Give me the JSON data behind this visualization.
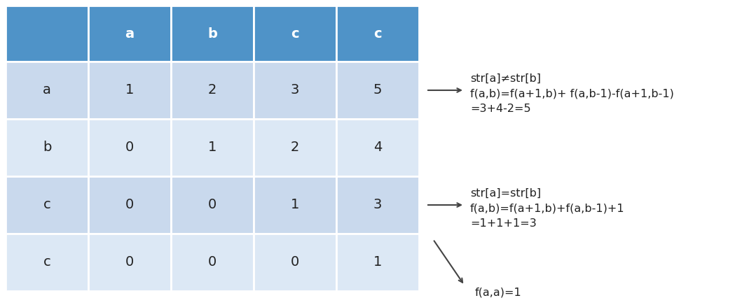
{
  "col_headers": [
    "",
    "a",
    "b",
    "c",
    "c"
  ],
  "row_headers": [
    "a",
    "b",
    "c",
    "c"
  ],
  "table_data": [
    [
      1,
      2,
      3,
      5
    ],
    [
      0,
      1,
      2,
      4
    ],
    [
      0,
      0,
      1,
      3
    ],
    [
      0,
      0,
      0,
      1
    ]
  ],
  "header_bg": "#4f93c8",
  "header_text": "#ffffff",
  "row_bgs": [
    "#c9d9ed",
    "#dce8f5",
    "#c9d9ed",
    "#dce8f5"
  ],
  "text_color": "#222222",
  "annotation1_lines": [
    "str[a]≠str[b]",
    "f(a,b)=f(a+1,b)+ f(a,b-1)-f(a+1,b-1)",
    "=3+4-2=5"
  ],
  "annotation2_lines": [
    "str[a]=str[b]",
    "f(a,b)=f(a+1,b)+f(a,b-1)+1",
    "=1+1+1=3"
  ],
  "annotation3_lines": [
    "f(a,a)=1"
  ],
  "fig_width": 10.69,
  "fig_height": 4.36
}
